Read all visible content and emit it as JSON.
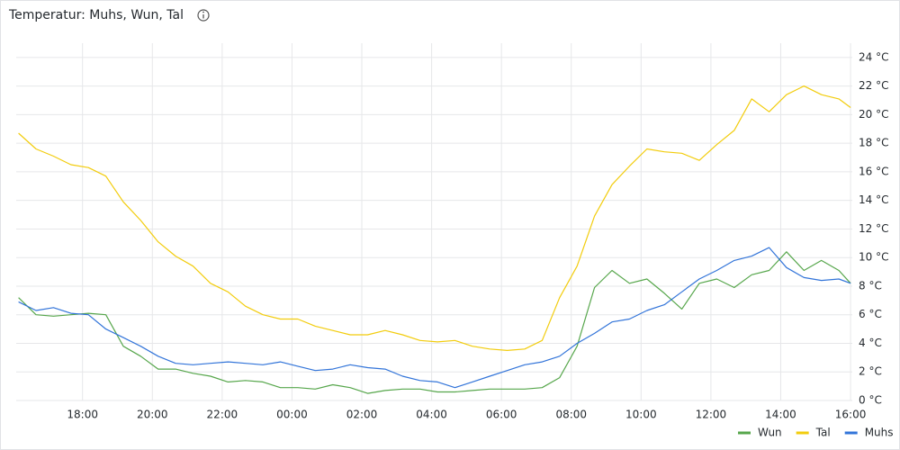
{
  "chart_data": {
    "type": "line",
    "title": "Temperatur: Muhs, Wun, Tal",
    "x": [
      "16:10",
      "16:40",
      "17:10",
      "17:40",
      "18:10",
      "18:40",
      "19:10",
      "19:40",
      "20:10",
      "20:40",
      "21:10",
      "21:40",
      "22:10",
      "22:40",
      "23:10",
      "23:40",
      "00:10",
      "00:40",
      "01:10",
      "01:40",
      "02:10",
      "02:40",
      "03:10",
      "03:40",
      "04:10",
      "04:40",
      "05:10",
      "05:40",
      "06:10",
      "06:40",
      "07:10",
      "07:40",
      "08:10",
      "08:40",
      "09:10",
      "09:40",
      "10:10",
      "10:40",
      "11:10",
      "11:40",
      "12:10",
      "12:40",
      "13:10",
      "13:40",
      "14:10",
      "14:40",
      "15:10",
      "15:40",
      "16:00"
    ],
    "series": [
      {
        "name": "Wun",
        "color": "#56a64b",
        "values": [
          7.2,
          6.0,
          5.9,
          6.0,
          6.1,
          6.0,
          3.8,
          3.1,
          2.2,
          2.2,
          1.9,
          1.7,
          1.3,
          1.4,
          1.3,
          0.9,
          0.9,
          0.8,
          1.1,
          0.9,
          0.5,
          0.7,
          0.8,
          0.8,
          0.6,
          0.6,
          0.7,
          0.8,
          0.8,
          0.8,
          0.9,
          1.6,
          3.8,
          7.9,
          9.1,
          8.2,
          8.5,
          7.5,
          6.4,
          8.2,
          8.5,
          7.9,
          8.8,
          9.1,
          10.4,
          9.1,
          9.8,
          9.1,
          8.2
        ]
      },
      {
        "name": "Tal",
        "color": "#f2cc0c",
        "values": [
          18.7,
          17.6,
          17.1,
          16.5,
          16.3,
          15.7,
          13.9,
          12.6,
          11.1,
          10.1,
          9.4,
          8.2,
          7.6,
          6.6,
          6.0,
          5.7,
          5.7,
          5.2,
          4.9,
          4.6,
          4.6,
          4.9,
          4.6,
          4.2,
          4.1,
          4.2,
          3.8,
          3.6,
          3.5,
          3.6,
          4.2,
          7.2,
          9.4,
          12.9,
          15.1,
          16.4,
          17.6,
          17.4,
          17.3,
          16.8,
          17.9,
          18.9,
          21.1,
          20.2,
          21.4,
          22.0,
          21.4,
          21.1,
          20.5
        ]
      },
      {
        "name": "Muhs",
        "color": "#3274d9",
        "values": [
          6.9,
          6.3,
          6.5,
          6.1,
          6.0,
          5.0,
          4.4,
          3.8,
          3.1,
          2.6,
          2.5,
          2.6,
          2.7,
          2.6,
          2.5,
          2.7,
          2.4,
          2.1,
          2.2,
          2.5,
          2.3,
          2.2,
          1.7,
          1.4,
          1.3,
          0.9,
          1.3,
          1.7,
          2.1,
          2.5,
          2.7,
          3.1,
          4.0,
          4.7,
          5.5,
          5.7,
          6.3,
          6.7,
          7.6,
          8.5,
          9.1,
          9.8,
          10.1,
          10.7,
          9.3,
          8.6,
          8.4,
          8.5,
          8.2
        ]
      }
    ],
    "xlim": [
      "16:06",
      "16:03"
    ],
    "xticks": [
      "18:00",
      "20:00",
      "22:00",
      "00:00",
      "02:00",
      "04:00",
      "06:00",
      "08:00",
      "10:00",
      "12:00",
      "14:00",
      "16:00"
    ],
    "ylim": [
      0,
      25
    ],
    "yticks": [
      {
        "value": 0,
        "label": "0 °C"
      },
      {
        "value": 2,
        "label": "2 °C"
      },
      {
        "value": 4,
        "label": "4 °C"
      },
      {
        "value": 6,
        "label": "6 °C"
      },
      {
        "value": 8,
        "label": "8 °C"
      },
      {
        "value": 10,
        "label": "10 °C"
      },
      {
        "value": 12,
        "label": "12 °C"
      },
      {
        "value": 14,
        "label": "14 °C"
      },
      {
        "value": 16,
        "label": "16 °C"
      },
      {
        "value": 18,
        "label": "18 °C"
      },
      {
        "value": 20,
        "label": "20 °C"
      },
      {
        "value": 22,
        "label": "22 °C"
      },
      {
        "value": 24,
        "label": "24 °C"
      }
    ],
    "grid": true
  }
}
